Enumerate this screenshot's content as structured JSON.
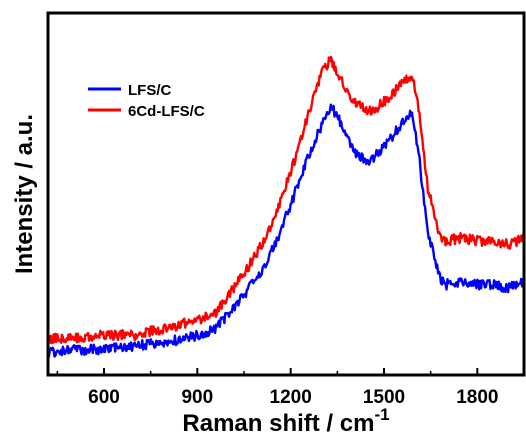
{
  "chart_data": {
    "type": "line",
    "title": "",
    "xlabel": "Raman shift / cm",
    "xlabel_sup": "-1",
    "ylabel": "Intensity / a.u.",
    "xlim": [
      420,
      1950
    ],
    "ylim": [
      0,
      1
    ],
    "xticks": [
      600,
      900,
      1200,
      1500,
      1800
    ],
    "xtick_labels": [
      "600",
      "900",
      "1200",
      "1500",
      "1800"
    ],
    "yticks_labeled": false,
    "grid": false,
    "legend_position": "top-left",
    "series": [
      {
        "name": "LFS/C",
        "color": "#0000ff",
        "x": [
          420,
          500,
          600,
          700,
          800,
          900,
          960,
          1000,
          1050,
          1100,
          1150,
          1200,
          1250,
          1300,
          1330,
          1360,
          1400,
          1450,
          1480,
          1520,
          1560,
          1590,
          1610,
          1640,
          1680,
          1700,
          1750,
          1800,
          1850,
          1900,
          1950
        ],
        "y": [
          0.06,
          0.07,
          0.07,
          0.08,
          0.09,
          0.11,
          0.13,
          0.17,
          0.22,
          0.28,
          0.36,
          0.47,
          0.59,
          0.69,
          0.74,
          0.7,
          0.62,
          0.59,
          0.61,
          0.65,
          0.7,
          0.72,
          0.62,
          0.4,
          0.27,
          0.25,
          0.26,
          0.25,
          0.25,
          0.24,
          0.26
        ]
      },
      {
        "name": "6Cd-LFS/C",
        "color": "#ff0000",
        "x": [
          420,
          500,
          600,
          700,
          800,
          900,
          960,
          1000,
          1050,
          1100,
          1150,
          1200,
          1250,
          1300,
          1330,
          1360,
          1400,
          1450,
          1480,
          1520,
          1560,
          1590,
          1610,
          1640,
          1680,
          1700,
          1750,
          1800,
          1850,
          1900,
          1950
        ],
        "y": [
          0.1,
          0.1,
          0.11,
          0.11,
          0.13,
          0.15,
          0.17,
          0.22,
          0.28,
          0.35,
          0.44,
          0.56,
          0.7,
          0.84,
          0.87,
          0.82,
          0.76,
          0.73,
          0.74,
          0.77,
          0.81,
          0.83,
          0.74,
          0.52,
          0.38,
          0.37,
          0.38,
          0.37,
          0.37,
          0.36,
          0.38
        ]
      }
    ]
  }
}
